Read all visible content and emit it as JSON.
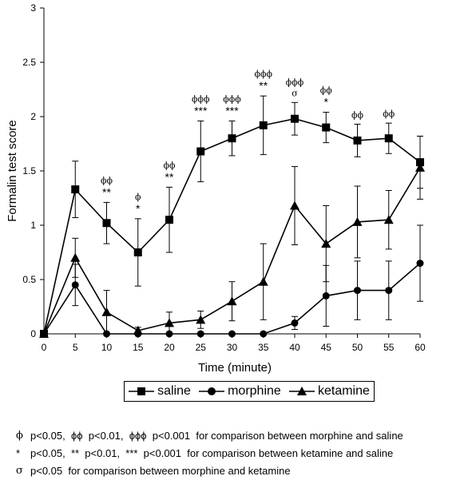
{
  "chart_data": {
    "type": "line",
    "xlabel": "Time (minute)",
    "ylabel": "Formalin test score",
    "x": [
      0,
      5,
      10,
      15,
      20,
      25,
      30,
      35,
      40,
      45,
      50,
      55,
      60
    ],
    "xlim": [
      0,
      60
    ],
    "ylim": [
      0,
      3
    ],
    "yticks": [
      "0",
      "0.5",
      "1",
      "1.5",
      "2",
      "2.5",
      "3"
    ],
    "xticks": [
      "0",
      "5",
      "10",
      "15",
      "20",
      "25",
      "30",
      "35",
      "40",
      "45",
      "50",
      "55",
      "60"
    ],
    "grid": false,
    "legend_position": "bottom",
    "series": [
      {
        "name": "saline",
        "marker": "square",
        "values": [
          0,
          1.33,
          1.02,
          0.75,
          1.05,
          1.68,
          1.8,
          1.92,
          1.98,
          1.9,
          1.78,
          1.8,
          1.58
        ],
        "err": [
          0,
          0.26,
          0.19,
          0.31,
          0.3,
          0.28,
          0.16,
          0.27,
          0.15,
          0.14,
          0.15,
          0.14,
          0.24
        ]
      },
      {
        "name": "morphine",
        "marker": "circle",
        "values": [
          0,
          0.45,
          0,
          0,
          0,
          0,
          0,
          0,
          0.1,
          0.35,
          0.4,
          0.4,
          0.65
        ],
        "err": [
          0,
          0.19,
          0,
          0,
          0,
          0,
          0,
          0,
          0.06,
          0.28,
          0.27,
          0.27,
          0.35
        ]
      },
      {
        "name": "ketamine",
        "marker": "triangle",
        "values": [
          0,
          0.7,
          0.2,
          0.03,
          0.1,
          0.13,
          0.3,
          0.48,
          1.18,
          0.83,
          1.03,
          1.05,
          1.53
        ],
        "err": [
          0,
          0.18,
          0.2,
          0.03,
          0.1,
          0.08,
          0.18,
          0.35,
          0.36,
          0.35,
          0.33,
          0.27,
          0.29
        ]
      }
    ],
    "annotations": [
      {
        "x": 10,
        "lines": [
          "ϕϕ",
          "**"
        ]
      },
      {
        "x": 15,
        "lines": [
          "ϕ",
          "*"
        ]
      },
      {
        "x": 20,
        "lines": [
          "ϕϕ",
          "**"
        ]
      },
      {
        "x": 25,
        "lines": [
          "ϕϕϕ",
          "***"
        ]
      },
      {
        "x": 30,
        "lines": [
          "ϕϕϕ",
          "***"
        ]
      },
      {
        "x": 35,
        "lines": [
          "ϕϕϕ",
          "**"
        ]
      },
      {
        "x": 40,
        "lines": [
          "ϕϕϕ",
          "σ"
        ]
      },
      {
        "x": 45,
        "lines": [
          "ϕϕ",
          "*"
        ]
      },
      {
        "x": 50,
        "lines": [
          "ϕϕ"
        ]
      },
      {
        "x": 55,
        "lines": [
          "ϕϕ"
        ]
      }
    ]
  },
  "notes": [
    {
      "symbol": "ϕ",
      "text": "p<0.05,  ϕϕ  p<0.01,  ϕϕϕ  p<0.001  for comparison between morphine and saline"
    },
    {
      "symbol": "*",
      "text": "p<0.05,  **  p<0.01,  ***  p<0.001  for comparison between ketamine and saline"
    },
    {
      "symbol": "σ",
      "text": "p<0.05  for comparison between morphine and ketamine"
    }
  ]
}
